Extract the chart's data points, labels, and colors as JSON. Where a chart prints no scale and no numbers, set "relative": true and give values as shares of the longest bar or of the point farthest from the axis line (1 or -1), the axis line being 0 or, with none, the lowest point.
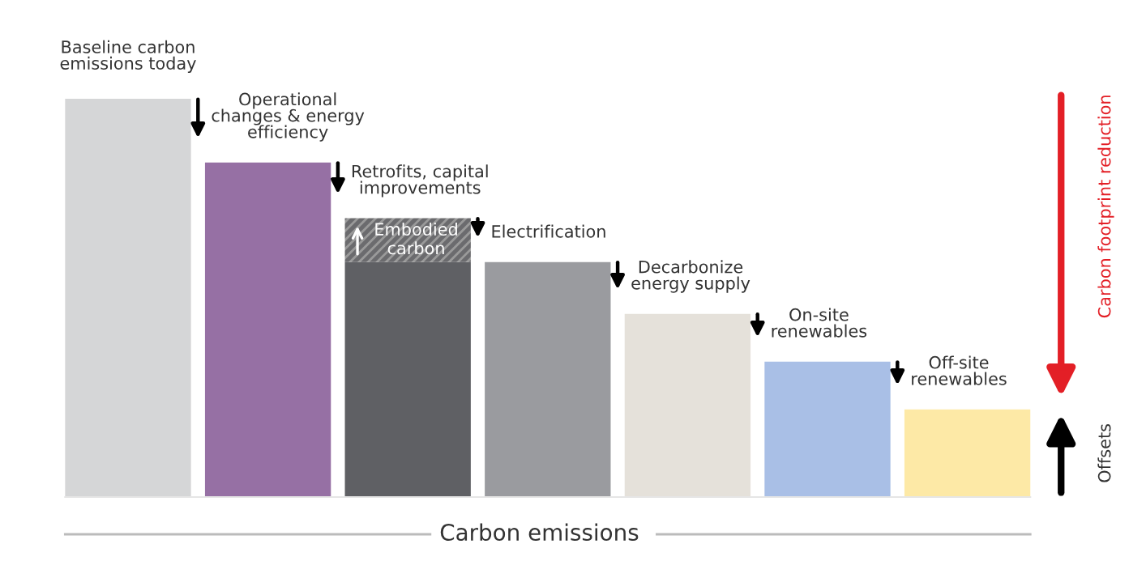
{
  "chart_data": {
    "type": "bar",
    "stacked": true,
    "categories": [
      "Baseline carbon\nemissions today",
      "Operational\nchanges & energy\nefficiency",
      "Retrofits, capital\nimprovements",
      "Electrification",
      "Decarbonize\nenergy supply",
      "On-site\nrenewables",
      "Off-site\nrenewables"
    ],
    "xlabel": "Carbon emissions",
    "series": [
      {
        "colors": [
          "#d5d6d7",
          "#9670a4",
          "#5f6064",
          "#9a9b9f",
          "#e5e1da",
          "#a9bfe6",
          "#fde9a6"
        ],
        "values": [
          1,
          0.84,
          0.59,
          0.59,
          0.46,
          0.34,
          0.22
        ]
      },
      {
        "name": "Embodied\ncarbon",
        "color": "#6b6b6e",
        "values": [
          null,
          null,
          0.11,
          null,
          null,
          null,
          null
        ]
      }
    ],
    "annotations": [
      "Carbon footprint reduction",
      "Offsets"
    ],
    "relative": true
  }
}
